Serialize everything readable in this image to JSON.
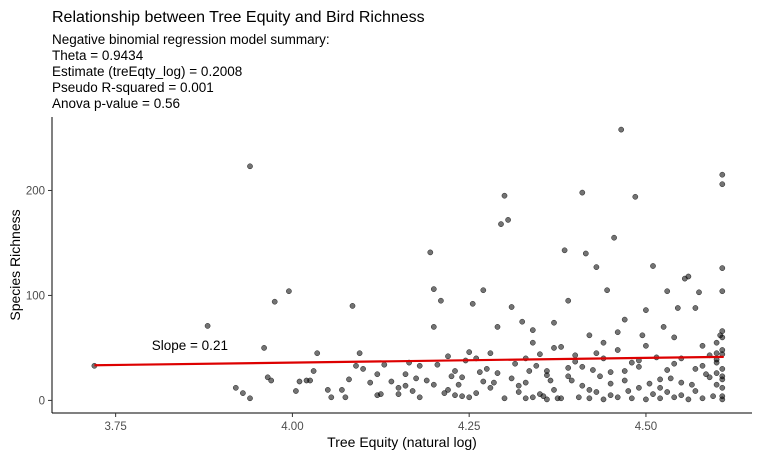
{
  "chart_data": {
    "type": "scatter",
    "title": "Relationship between Tree Equity and Bird Richness",
    "subtitle_lines": [
      "Negative binomial regression model summary:",
      "Theta = 0.9434",
      "Estimate (treEqty_log) = 0.2008",
      "Pseudo R-squared = 0.001",
      "Anova p-value = 0.56"
    ],
    "xlabel": "Tree Equity (natural log)",
    "ylabel": "Species Richness",
    "xlim": [
      3.66,
      4.65
    ],
    "ylim": [
      -12,
      270
    ],
    "x_ticks": [
      3.75,
      4.0,
      4.25,
      4.5
    ],
    "x_tick_labels": [
      "3.75",
      "4.00",
      "4.25",
      "4.50"
    ],
    "y_ticks": [
      0,
      100,
      200
    ],
    "y_tick_labels": [
      "0",
      "100",
      "200"
    ],
    "grid": false,
    "point_color": "#000000",
    "point_opacity": 0.55,
    "fit_line_color": "#dd0000",
    "fit_line": {
      "x": [
        3.72,
        4.61
      ],
      "y": [
        33.5,
        41.5
      ]
    },
    "annotation": {
      "text": "Slope =  0.21",
      "x": 3.855,
      "y": 48
    },
    "points": [
      [
        3.72,
        33
      ],
      [
        3.88,
        71
      ],
      [
        3.92,
        12
      ],
      [
        3.93,
        7
      ],
      [
        3.94,
        2
      ],
      [
        3.94,
        223
      ],
      [
        3.96,
        50
      ],
      [
        3.965,
        22
      ],
      [
        3.97,
        19
      ],
      [
        3.975,
        94
      ],
      [
        3.995,
        104
      ],
      [
        4.005,
        9
      ],
      [
        4.01,
        18
      ],
      [
        4.02,
        19
      ],
      [
        4.025,
        19
      ],
      [
        4.03,
        28
      ],
      [
        4.035,
        45
      ],
      [
        4.05,
        10
      ],
      [
        4.055,
        3
      ],
      [
        4.07,
        10
      ],
      [
        4.075,
        3
      ],
      [
        4.08,
        20
      ],
      [
        4.085,
        90
      ],
      [
        4.09,
        33
      ],
      [
        4.095,
        45
      ],
      [
        4.1,
        30
      ],
      [
        4.11,
        17
      ],
      [
        4.12,
        5
      ],
      [
        4.125,
        6
      ],
      [
        4.13,
        34
      ],
      [
        4.14,
        18
      ],
      [
        4.15,
        6
      ],
      [
        4.16,
        14
      ],
      [
        4.165,
        36
      ],
      [
        4.17,
        9
      ],
      [
        4.175,
        21
      ],
      [
        4.18,
        33
      ],
      [
        4.19,
        19
      ],
      [
        4.195,
        141
      ],
      [
        4.2,
        106
      ],
      [
        4.2,
        70
      ],
      [
        4.205,
        34
      ],
      [
        4.21,
        95
      ],
      [
        4.215,
        7
      ],
      [
        4.22,
        42
      ],
      [
        4.225,
        23
      ],
      [
        4.23,
        28
      ],
      [
        4.235,
        15
      ],
      [
        4.24,
        4
      ],
      [
        4.245,
        38
      ],
      [
        4.25,
        46
      ],
      [
        4.255,
        92
      ],
      [
        4.26,
        7
      ],
      [
        4.265,
        27
      ],
      [
        4.27,
        105
      ],
      [
        4.275,
        30
      ],
      [
        4.28,
        45
      ],
      [
        4.285,
        17
      ],
      [
        4.29,
        70
      ],
      [
        4.295,
        168
      ],
      [
        4.3,
        195
      ],
      [
        4.305,
        172
      ],
      [
        4.31,
        89
      ],
      [
        4.315,
        35
      ],
      [
        4.32,
        8
      ],
      [
        4.325,
        75
      ],
      [
        4.33,
        17
      ],
      [
        4.335,
        28
      ],
      [
        4.34,
        67
      ],
      [
        4.345,
        33
      ],
      [
        4.35,
        44
      ],
      [
        4.355,
        4
      ],
      [
        4.36,
        24
      ],
      [
        4.365,
        19
      ],
      [
        4.37,
        74
      ],
      [
        4.375,
        2
      ],
      [
        4.38,
        51
      ],
      [
        4.385,
        143
      ],
      [
        4.39,
        95
      ],
      [
        4.395,
        19
      ],
      [
        4.4,
        43
      ],
      [
        4.405,
        3
      ],
      [
        4.41,
        198
      ],
      [
        4.415,
        140
      ],
      [
        4.42,
        62
      ],
      [
        4.425,
        29
      ],
      [
        4.43,
        127
      ],
      [
        4.435,
        23
      ],
      [
        4.44,
        55
      ],
      [
        4.445,
        105
      ],
      [
        4.45,
        16
      ],
      [
        4.455,
        155
      ],
      [
        4.46,
        65
      ],
      [
        4.465,
        258
      ],
      [
        4.47,
        77
      ],
      [
        4.475,
        9
      ],
      [
        4.48,
        36
      ],
      [
        4.485,
        194
      ],
      [
        4.49,
        32
      ],
      [
        4.495,
        62
      ],
      [
        4.5,
        86
      ],
      [
        4.505,
        16
      ],
      [
        4.51,
        128
      ],
      [
        4.515,
        41
      ],
      [
        4.52,
        12
      ],
      [
        4.525,
        70
      ],
      [
        4.53,
        104
      ],
      [
        4.535,
        21
      ],
      [
        4.54,
        35
      ],
      [
        4.545,
        88
      ],
      [
        4.55,
        40
      ],
      [
        4.555,
        116
      ],
      [
        4.56,
        118
      ],
      [
        4.565,
        15
      ],
      [
        4.57,
        88
      ],
      [
        4.575,
        103
      ],
      [
        4.58,
        52
      ],
      [
        4.585,
        25
      ],
      [
        4.59,
        43
      ],
      [
        4.595,
        4
      ],
      [
        4.6,
        39
      ],
      [
        4.605,
        62
      ],
      [
        4.608,
        215
      ],
      [
        4.608,
        206
      ],
      [
        4.608,
        126
      ],
      [
        4.608,
        104
      ],
      [
        4.608,
        66
      ],
      [
        4.608,
        60
      ],
      [
        4.608,
        48
      ],
      [
        4.608,
        44
      ],
      [
        4.608,
        30
      ],
      [
        4.608,
        23
      ],
      [
        4.608,
        20
      ],
      [
        4.608,
        12
      ],
      [
        4.608,
        4
      ],
      [
        4.608,
        1
      ],
      [
        4.3,
        2
      ],
      [
        4.34,
        3
      ],
      [
        4.36,
        1
      ],
      [
        4.38,
        2
      ],
      [
        4.42,
        2
      ],
      [
        4.44,
        1
      ],
      [
        4.46,
        3
      ],
      [
        4.48,
        2
      ],
      [
        4.5,
        1
      ],
      [
        4.52,
        2
      ],
      [
        4.54,
        3
      ],
      [
        4.56,
        1
      ],
      [
        4.58,
        2
      ],
      [
        4.31,
        21
      ],
      [
        4.33,
        40
      ],
      [
        4.37,
        10
      ],
      [
        4.39,
        31
      ],
      [
        4.41,
        14
      ],
      [
        4.43,
        8
      ],
      [
        4.45,
        27
      ],
      [
        4.47,
        19
      ],
      [
        4.49,
        12
      ],
      [
        4.51,
        6
      ],
      [
        4.53,
        29
      ],
      [
        4.55,
        17
      ],
      [
        4.57,
        9
      ],
      [
        4.59,
        22
      ],
      [
        4.26,
        40
      ],
      [
        4.28,
        12
      ],
      [
        4.24,
        22
      ],
      [
        4.22,
        10
      ],
      [
        4.2,
        15
      ],
      [
        4.18,
        3
      ],
      [
        4.16,
        25
      ],
      [
        4.34,
        55
      ],
      [
        4.36,
        28
      ],
      [
        4.4,
        37
      ],
      [
        4.44,
        40
      ],
      [
        4.46,
        48
      ],
      [
        4.5,
        52
      ],
      [
        4.54,
        60
      ],
      [
        4.58,
        33
      ],
      [
        4.6,
        15
      ],
      [
        4.6,
        26
      ],
      [
        4.6,
        36
      ],
      [
        4.6,
        45
      ],
      [
        4.6,
        55
      ],
      [
        4.55,
        5
      ],
      [
        4.45,
        5
      ],
      [
        4.35,
        6
      ],
      [
        4.25,
        3
      ],
      [
        4.15,
        12
      ],
      [
        4.12,
        25
      ],
      [
        4.32,
        14
      ],
      [
        4.42,
        10
      ],
      [
        4.52,
        20
      ],
      [
        4.39,
        23
      ],
      [
        4.41,
        32
      ],
      [
        4.47,
        28
      ],
      [
        4.49,
        38
      ],
      [
        4.57,
        30
      ],
      [
        4.43,
        45
      ],
      [
        4.37,
        50
      ],
      [
        4.27,
        18
      ],
      [
        4.23,
        5
      ],
      [
        4.29,
        26
      ],
      [
        4.33,
        2
      ],
      [
        4.53,
        8
      ]
    ]
  }
}
